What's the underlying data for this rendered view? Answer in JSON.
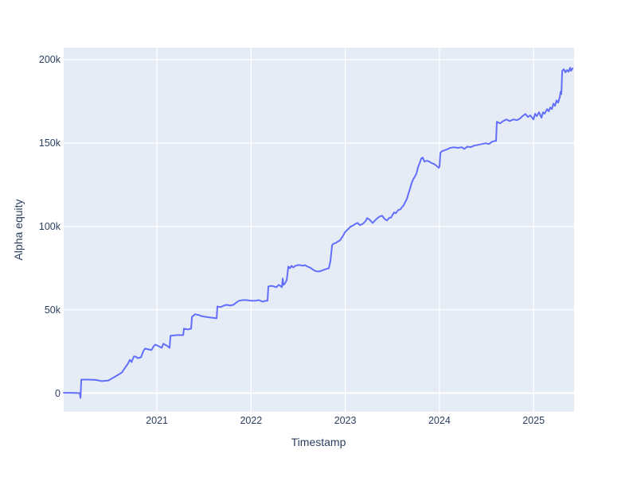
{
  "chart_data": {
    "type": "line",
    "title": "",
    "xlabel": "Timestamp",
    "ylabel": "Alpha equity",
    "legend": "none",
    "grid": true,
    "xlim": [
      2020.01,
      2025.43
    ],
    "ylim": [
      -11200,
      207200
    ],
    "x_ticks": {
      "values": [
        2021,
        2022,
        2023,
        2024,
        2025
      ],
      "labels": [
        "2021",
        "2022",
        "2023",
        "2024",
        "2025"
      ]
    },
    "y_ticks": {
      "values": [
        0,
        50000,
        100000,
        150000,
        200000
      ],
      "labels": [
        "0",
        "50k",
        "100k",
        "150k",
        "200k"
      ]
    },
    "colors": {
      "line": "#636efa",
      "plot_bg": "#e5ecf6",
      "grid": "#ffffff",
      "text": "#2a3f5f",
      "figure_bg": "#ffffff"
    },
    "series": [
      {
        "name": "Alpha equity",
        "points": [
          [
            2020.011,
            200
          ],
          [
            2020.095,
            200
          ],
          [
            2020.18,
            0
          ],
          [
            2020.188,
            -2900
          ],
          [
            2020.197,
            8100
          ],
          [
            2020.265,
            8100
          ],
          [
            2020.349,
            7900
          ],
          [
            2020.417,
            7200
          ],
          [
            2020.484,
            7600
          ],
          [
            2020.56,
            10000
          ],
          [
            2020.603,
            11500
          ],
          [
            2020.628,
            12400
          ],
          [
            2020.662,
            15300
          ],
          [
            2020.687,
            17200
          ],
          [
            2020.713,
            20000
          ],
          [
            2020.73,
            18600
          ],
          [
            2020.755,
            22000
          ],
          [
            2020.772,
            22000
          ],
          [
            2020.797,
            21000
          ],
          [
            2020.831,
            21500
          ],
          [
            2020.856,
            25300
          ],
          [
            2020.873,
            26700
          ],
          [
            2020.907,
            26300
          ],
          [
            2020.941,
            25800
          ],
          [
            2020.966,
            28200
          ],
          [
            2020.983,
            29100
          ],
          [
            2021.017,
            28200
          ],
          [
            2021.051,
            27200
          ],
          [
            2021.068,
            29600
          ],
          [
            2021.101,
            28600
          ],
          [
            2021.135,
            27200
          ],
          [
            2021.144,
            34400
          ],
          [
            2021.211,
            34800
          ],
          [
            2021.279,
            34800
          ],
          [
            2021.287,
            38700
          ],
          [
            2021.33,
            38200
          ],
          [
            2021.363,
            38700
          ],
          [
            2021.372,
            45800
          ],
          [
            2021.406,
            47300
          ],
          [
            2021.448,
            46800
          ],
          [
            2021.465,
            46300
          ],
          [
            2021.516,
            45800
          ],
          [
            2021.575,
            45300
          ],
          [
            2021.634,
            44900
          ],
          [
            2021.642,
            52000
          ],
          [
            2021.676,
            51600
          ],
          [
            2021.71,
            52500
          ],
          [
            2021.744,
            53000
          ],
          [
            2021.778,
            52500
          ],
          [
            2021.811,
            53000
          ],
          [
            2021.845,
            54400
          ],
          [
            2021.871,
            55400
          ],
          [
            2021.913,
            55800
          ],
          [
            2021.955,
            55800
          ],
          [
            2021.997,
            55400
          ],
          [
            2022.04,
            55400
          ],
          [
            2022.082,
            55800
          ],
          [
            2022.124,
            54900
          ],
          [
            2022.158,
            55400
          ],
          [
            2022.175,
            55400
          ],
          [
            2022.183,
            64000
          ],
          [
            2022.217,
            64400
          ],
          [
            2022.243,
            64000
          ],
          [
            2022.268,
            63500
          ],
          [
            2022.293,
            64900
          ],
          [
            2022.31,
            64400
          ],
          [
            2022.327,
            63500
          ],
          [
            2022.336,
            68700
          ],
          [
            2022.344,
            64900
          ],
          [
            2022.361,
            65900
          ],
          [
            2022.378,
            67800
          ],
          [
            2022.395,
            75900
          ],
          [
            2022.412,
            74900
          ],
          [
            2022.429,
            76400
          ],
          [
            2022.446,
            75400
          ],
          [
            2022.471,
            76400
          ],
          [
            2022.496,
            76800
          ],
          [
            2022.522,
            76800
          ],
          [
            2022.547,
            76400
          ],
          [
            2022.572,
            76800
          ],
          [
            2022.598,
            75900
          ],
          [
            2022.623,
            75400
          ],
          [
            2022.648,
            74500
          ],
          [
            2022.674,
            73500
          ],
          [
            2022.699,
            73000
          ],
          [
            2022.724,
            73000
          ],
          [
            2022.75,
            73500
          ],
          [
            2022.775,
            74000
          ],
          [
            2022.8,
            74500
          ],
          [
            2022.826,
            74900
          ],
          [
            2022.843,
            79200
          ],
          [
            2022.851,
            83900
          ],
          [
            2022.86,
            88800
          ],
          [
            2022.877,
            89700
          ],
          [
            2022.902,
            90200
          ],
          [
            2022.927,
            91100
          ],
          [
            2022.944,
            91600
          ],
          [
            2022.961,
            93100
          ],
          [
            2022.978,
            94500
          ],
          [
            2022.995,
            96400
          ],
          [
            2023.012,
            97400
          ],
          [
            2023.029,
            98300
          ],
          [
            2023.054,
            99800
          ],
          [
            2023.088,
            100700
          ],
          [
            2023.113,
            101700
          ],
          [
            2023.13,
            102100
          ],
          [
            2023.156,
            100700
          ],
          [
            2023.19,
            101700
          ],
          [
            2023.215,
            103100
          ],
          [
            2023.232,
            105000
          ],
          [
            2023.257,
            104100
          ],
          [
            2023.291,
            102100
          ],
          [
            2023.316,
            103600
          ],
          [
            2023.342,
            105000
          ],
          [
            2023.367,
            106000
          ],
          [
            2023.392,
            106400
          ],
          [
            2023.418,
            104500
          ],
          [
            2023.443,
            103600
          ],
          [
            2023.468,
            105200
          ],
          [
            2023.485,
            105200
          ],
          [
            2023.502,
            106900
          ],
          [
            2023.519,
            108400
          ],
          [
            2023.536,
            107900
          ],
          [
            2023.561,
            109800
          ],
          [
            2023.587,
            110300
          ],
          [
            2023.604,
            111700
          ],
          [
            2023.62,
            112600
          ],
          [
            2023.637,
            114600
          ],
          [
            2023.654,
            116500
          ],
          [
            2023.671,
            119800
          ],
          [
            2023.688,
            122700
          ],
          [
            2023.705,
            126000
          ],
          [
            2023.722,
            128400
          ],
          [
            2023.739,
            129800
          ],
          [
            2023.756,
            131700
          ],
          [
            2023.773,
            135600
          ],
          [
            2023.79,
            137900
          ],
          [
            2023.807,
            140800
          ],
          [
            2023.823,
            141300
          ],
          [
            2023.84,
            138900
          ],
          [
            2023.866,
            139400
          ],
          [
            2023.891,
            138900
          ],
          [
            2023.916,
            138000
          ],
          [
            2023.942,
            137500
          ],
          [
            2023.967,
            136500
          ],
          [
            2023.993,
            135100
          ],
          [
            2024.001,
            136100
          ],
          [
            2024.01,
            144200
          ],
          [
            2024.027,
            145100
          ],
          [
            2024.052,
            145600
          ],
          [
            2024.077,
            146100
          ],
          [
            2024.111,
            147000
          ],
          [
            2024.153,
            147500
          ],
          [
            2024.196,
            147100
          ],
          [
            2024.238,
            147500
          ],
          [
            2024.263,
            146500
          ],
          [
            2024.297,
            147900
          ],
          [
            2024.331,
            147500
          ],
          [
            2024.365,
            148400
          ],
          [
            2024.407,
            148900
          ],
          [
            2024.449,
            149400
          ],
          [
            2024.491,
            149900
          ],
          [
            2024.525,
            149400
          ],
          [
            2024.559,
            150800
          ],
          [
            2024.593,
            151300
          ],
          [
            2024.601,
            151300
          ],
          [
            2024.61,
            162800
          ],
          [
            2024.644,
            161800
          ],
          [
            2024.677,
            163200
          ],
          [
            2024.711,
            164200
          ],
          [
            2024.745,
            163200
          ],
          [
            2024.787,
            164200
          ],
          [
            2024.821,
            163700
          ],
          [
            2024.855,
            164700
          ],
          [
            2024.88,
            166100
          ],
          [
            2024.914,
            167500
          ],
          [
            2024.939,
            165600
          ],
          [
            2024.965,
            166600
          ],
          [
            2024.999,
            164200
          ],
          [
            2025.016,
            167600
          ],
          [
            2025.033,
            166100
          ],
          [
            2025.058,
            168500
          ],
          [
            2025.083,
            165200
          ],
          [
            2025.1,
            168500
          ],
          [
            2025.117,
            167600
          ],
          [
            2025.143,
            170400
          ],
          [
            2025.16,
            169000
          ],
          [
            2025.177,
            171400
          ],
          [
            2025.194,
            170400
          ],
          [
            2025.211,
            173700
          ],
          [
            2025.227,
            172300
          ],
          [
            2025.244,
            175600
          ],
          [
            2025.261,
            174200
          ],
          [
            2025.278,
            177500
          ],
          [
            2025.287,
            180900
          ],
          [
            2025.295,
            179400
          ],
          [
            2025.304,
            193300
          ],
          [
            2025.321,
            194300
          ],
          [
            2025.338,
            192400
          ],
          [
            2025.355,
            193800
          ],
          [
            2025.371,
            192800
          ],
          [
            2025.388,
            195200
          ],
          [
            2025.397,
            193300
          ],
          [
            2025.414,
            194800
          ]
        ]
      }
    ]
  }
}
